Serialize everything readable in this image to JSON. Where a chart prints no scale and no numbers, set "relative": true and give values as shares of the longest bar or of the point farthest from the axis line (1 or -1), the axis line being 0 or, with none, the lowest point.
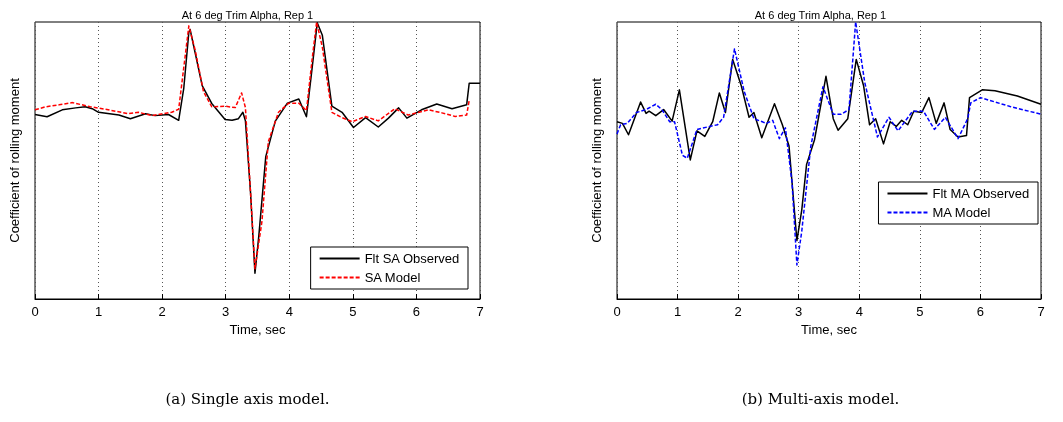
{
  "chart_data": [
    {
      "type": "line",
      "title": "At 6 deg Trim Alpha, Rep 1",
      "xlabel": "Time, sec",
      "ylabel": "Coefficient of rolling moment",
      "annotations": [
        "(a) Single axis model."
      ],
      "relative": true,
      "xlim": [
        0,
        7
      ],
      "xticks": [
        0,
        1,
        2,
        3,
        4,
        5,
        6,
        7
      ],
      "grid": "x",
      "legend": "bottom right",
      "marker": "none",
      "series": [
        {
          "name": "Flt SA Observed",
          "color": "#000000",
          "line_style": "solid",
          "x": [
            0,
            0.19,
            0.43,
            0.64,
            0.79,
            0.9,
            1.0,
            1.32,
            1.5,
            1.74,
            1.89,
            2.1,
            2.26,
            2.34,
            2.42,
            2.44,
            2.52,
            2.63,
            2.78,
            2.99,
            3.1,
            3.2,
            3.27,
            3.31,
            3.39,
            3.46,
            3.52,
            3.63,
            3.78,
            3.97,
            4.15,
            4.27,
            4.36,
            4.44,
            4.52,
            4.67,
            4.83,
            5.01,
            5.2,
            5.4,
            5.56,
            5.72,
            5.85,
            6.08,
            6.32,
            6.56,
            6.79,
            6.83,
            7.0
          ],
          "values": [
            0.666,
            0.658,
            0.683,
            0.69,
            0.694,
            0.687,
            0.674,
            0.664,
            0.651,
            0.669,
            0.662,
            0.666,
            0.645,
            0.76,
            0.963,
            0.973,
            0.888,
            0.77,
            0.706,
            0.648,
            0.645,
            0.651,
            0.674,
            0.643,
            0.386,
            0.093,
            0.226,
            0.514,
            0.642,
            0.707,
            0.722,
            0.658,
            0.835,
            0.997,
            0.952,
            0.696,
            0.674,
            0.619,
            0.655,
            0.621,
            0.653,
            0.69,
            0.653,
            0.683,
            0.704,
            0.687,
            0.701,
            0.779,
            0.779
          ]
        },
        {
          "name": "SA Model",
          "color": "#ff0000",
          "line_style": "dashed",
          "x": [
            0,
            0.17,
            0.38,
            0.59,
            0.87,
            1.11,
            1.47,
            1.63,
            1.84,
            2.15,
            2.26,
            2.34,
            2.42,
            2.52,
            2.65,
            2.78,
            2.99,
            3.15,
            3.25,
            3.31,
            3.39,
            3.46,
            3.57,
            3.67,
            3.83,
            3.99,
            4.15,
            4.27,
            4.36,
            4.43,
            4.52,
            4.67,
            4.83,
            4.99,
            5.2,
            5.4,
            5.66,
            5.87,
            6.19,
            6.4,
            6.61,
            6.79,
            6.83
          ],
          "values": [
            0.683,
            0.694,
            0.701,
            0.709,
            0.694,
            0.685,
            0.669,
            0.674,
            0.662,
            0.674,
            0.685,
            0.835,
            0.986,
            0.898,
            0.749,
            0.694,
            0.696,
            0.691,
            0.744,
            0.691,
            0.386,
            0.109,
            0.28,
            0.568,
            0.674,
            0.707,
            0.707,
            0.68,
            0.867,
            1.0,
            0.909,
            0.674,
            0.655,
            0.64,
            0.659,
            0.643,
            0.687,
            0.664,
            0.683,
            0.672,
            0.659,
            0.664,
            0.717
          ]
        }
      ]
    },
    {
      "type": "line",
      "title": "At 6 deg Trim Alpha, Rep 1",
      "xlabel": "Time, sec",
      "ylabel": "Coefficient of rolling moment",
      "annotations": [
        "(b) Multi-axis model."
      ],
      "relative": true,
      "xlim": [
        0,
        7
      ],
      "xticks": [
        0,
        1,
        2,
        3,
        4,
        5,
        6,
        7
      ],
      "grid": "x",
      "legend": "right",
      "marker": "none",
      "series": [
        {
          "name": "Flt MA Observed",
          "color": "#000000",
          "line_style": "solid",
          "x": [
            0,
            0.09,
            0.19,
            0.39,
            0.48,
            0.53,
            0.64,
            0.77,
            0.91,
            1.03,
            1.21,
            1.32,
            1.45,
            1.58,
            1.69,
            1.79,
            1.91,
            2.05,
            2.18,
            2.26,
            2.39,
            2.6,
            2.73,
            2.84,
            2.97,
            3.05,
            3.13,
            3.26,
            3.45,
            3.57,
            3.65,
            3.81,
            3.95,
            4.07,
            4.17,
            4.27,
            4.4,
            4.51,
            4.61,
            4.7,
            4.8,
            4.9,
            5.03,
            5.15,
            5.27,
            5.4,
            5.5,
            5.63,
            5.77,
            5.82,
            6.03,
            6.24,
            6.61,
            7.0
          ],
          "values": [
            0.64,
            0.634,
            0.593,
            0.711,
            0.67,
            0.678,
            0.662,
            0.684,
            0.642,
            0.755,
            0.502,
            0.607,
            0.587,
            0.64,
            0.744,
            0.673,
            0.865,
            0.771,
            0.656,
            0.673,
            0.582,
            0.705,
            0.629,
            0.552,
            0.211,
            0.321,
            0.486,
            0.574,
            0.804,
            0.651,
            0.609,
            0.651,
            0.865,
            0.771,
            0.629,
            0.651,
            0.56,
            0.64,
            0.623,
            0.645,
            0.629,
            0.678,
            0.673,
            0.727,
            0.634,
            0.708,
            0.612,
            0.585,
            0.59,
            0.727,
            0.755,
            0.752,
            0.733,
            0.703
          ]
        },
        {
          "name": "MA Model",
          "color": "#0000ff",
          "line_style": "dashed",
          "x": [
            0,
            0.06,
            0.17,
            0.32,
            0.48,
            0.64,
            0.74,
            0.87,
            0.95,
            1.08,
            1.16,
            1.32,
            1.53,
            1.66,
            1.76,
            1.94,
            2.1,
            2.26,
            2.47,
            2.57,
            2.68,
            2.78,
            2.89,
            2.97,
            3.05,
            3.2,
            3.4,
            3.57,
            3.7,
            3.83,
            3.94,
            4.09,
            4.3,
            4.49,
            4.64,
            4.88,
            5.06,
            5.24,
            5.42,
            5.63,
            5.79,
            5.84,
            6.0,
            6.49,
            7.0
          ],
          "values": [
            0.596,
            0.629,
            0.634,
            0.673,
            0.684,
            0.703,
            0.684,
            0.64,
            0.64,
            0.519,
            0.508,
            0.612,
            0.623,
            0.629,
            0.656,
            0.903,
            0.749,
            0.651,
            0.634,
            0.645,
            0.579,
            0.618,
            0.42,
            0.123,
            0.244,
            0.552,
            0.766,
            0.667,
            0.667,
            0.684,
            1.0,
            0.782,
            0.585,
            0.656,
            0.607,
            0.678,
            0.678,
            0.612,
            0.656,
            0.579,
            0.651,
            0.708,
            0.727,
            0.695,
            0.667
          ]
        }
      ]
    }
  ]
}
